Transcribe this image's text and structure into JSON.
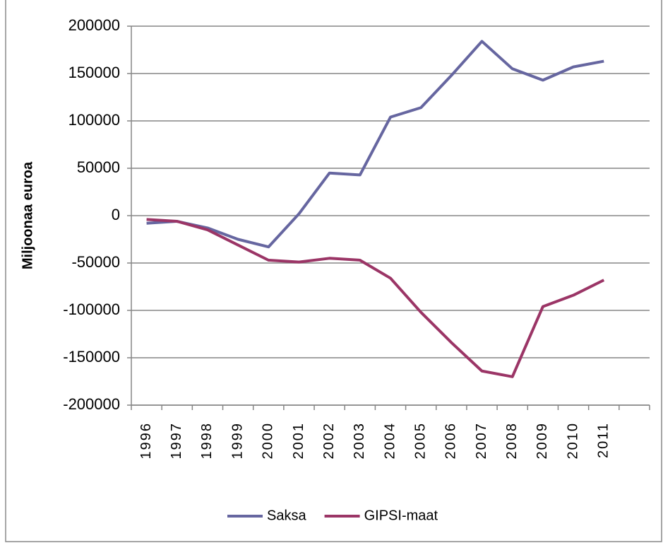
{
  "chart_data": {
    "type": "line",
    "y_label": "Miljoonaa euroa",
    "categories": [
      "1996",
      "1997",
      "1998",
      "1999",
      "2000",
      "2001",
      "2002",
      "2003",
      "2004",
      "2005",
      "2006",
      "2007",
      "2008",
      "2009",
      "2010",
      "2011",
      null
    ],
    "series": [
      {
        "name": "Saksa",
        "color": "#6666a0",
        "values": [
          -8000,
          -6000,
          -13000,
          -25000,
          -33000,
          2000,
          45000,
          43000,
          104000,
          114000,
          148000,
          184000,
          155000,
          143000,
          157000,
          163000,
          null
        ]
      },
      {
        "name": "GIPSI-maat",
        "color": "#9b3566",
        "values": [
          -4000,
          -6000,
          -15000,
          -31000,
          -47000,
          -49000,
          -45000,
          -47000,
          -66000,
          -102000,
          -134000,
          -164000,
          -170000,
          -96000,
          -84000,
          -68000,
          null
        ]
      }
    ],
    "ylim": [
      -200000,
      200000
    ],
    "yticks": [
      -200000,
      -150000,
      -100000,
      -50000,
      0,
      50000,
      100000,
      150000,
      200000
    ],
    "grid": true,
    "legend": "bottom"
  }
}
